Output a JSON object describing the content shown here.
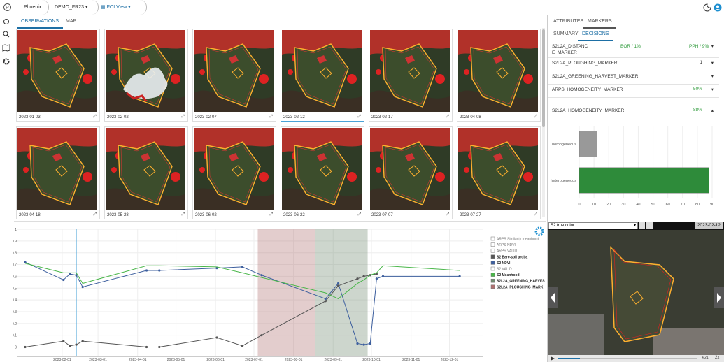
{
  "app": {
    "name": "Phoenix",
    "project": "DEMO_FR23",
    "view": "FOI View"
  },
  "tabs": {
    "main": [
      "OBSERVATIONS",
      "MAP"
    ],
    "side": [
      "ATTRIBUTES",
      "MARKERS"
    ],
    "markers": [
      "SUMMARY",
      "DECISIONS"
    ]
  },
  "observations": [
    "2023-01-03",
    "2023-02-02",
    "2023-02-07",
    "2023-02-12",
    "2023-02-17",
    "2023-04-08",
    "2023-04-18",
    "2023-05-28",
    "2023-06-02",
    "2023-06-22",
    "2023-07-07",
    "2023-07-27"
  ],
  "markers": [
    {
      "name": "S2L2A_DISTANCE_MARKER",
      "values": [
        "BOR / 1%",
        "PPH / 9%"
      ]
    },
    {
      "name": "S2L2A_PLOUGHING_MARKER",
      "value": 1
    },
    {
      "name": "S2L2A_GREENING_HARVEST_MARKER"
    },
    {
      "name": "ARPS_HOMOGENEITY_MARKER",
      "value": "50%"
    },
    {
      "name": "S2L2A_HOMOGENEITY_MARKER",
      "value": "88%"
    }
  ],
  "viewer": {
    "layer": "S2 true color",
    "frame": "4/21",
    "zoom": "2x"
  },
  "chart_data": [
    {
      "type": "line",
      "x": [
        "2023-01-03",
        "2023-02-02",
        "2023-02-07",
        "2023-02-12",
        "2023-02-17",
        "2023-04-08",
        "2023-04-18",
        "2023-06-02",
        "2023-06-22",
        "2023-07-07",
        "2023-08-26",
        "2023-09-05",
        "2023-09-20",
        "2023-09-25",
        "2023-09-30",
        "2023-10-05",
        "2023-10-10",
        "2023-12-09"
      ],
      "xlim": [
        "2022-12-28",
        "2023-12-27"
      ],
      "xticks": [
        "2023-02-01",
        "2023-03-01",
        "2023-04-01",
        "2023-05-01",
        "2023-06-01",
        "2023-07-01",
        "2023-08-01",
        "2023-09-01",
        "2023-10-01",
        "2023-11-01",
        "2023-12-01"
      ],
      "ylim": [
        -0.08,
        1
      ],
      "yticks": [
        0,
        0.1,
        0.2,
        0.3,
        0.4,
        0.5,
        0.6,
        0.7,
        0.8,
        0.9,
        1
      ],
      "grid": true,
      "series": [
        {
          "name": "ARPS Similarity meanhood",
          "checked": false
        },
        {
          "name": "ARPS NDVI",
          "checked": false
        },
        {
          "name": "ARPS VALID",
          "checked": false
        },
        {
          "name": "S2 Bare-soil proba",
          "checked": true,
          "color": "#555555",
          "values": [
            0.0,
            0.05,
            0.01,
            0.02,
            0.05,
            0.0,
            0.0,
            0.08,
            0.01,
            0.1,
            0.39,
            0.52,
            0.58,
            0.6,
            0.61,
            0.62,
            null,
            null
          ]
        },
        {
          "name": "S2 NDVI",
          "checked": true,
          "color": "#3d5f9e",
          "values": [
            0.72,
            0.57,
            0.62,
            0.61,
            0.51,
            0.65,
            0.65,
            0.67,
            0.68,
            0.61,
            0.41,
            0.54,
            0.03,
            0.02,
            0.03,
            0.58,
            0.6,
            0.6
          ]
        },
        {
          "name": "S2 VALID",
          "checked": false
        },
        {
          "name": "S2 Meanhood",
          "checked": true,
          "color": "#49b649",
          "values": [
            0.71,
            0.63,
            0.63,
            0.63,
            0.54,
            0.69,
            0.69,
            0.68,
            0.63,
            0.59,
            0.46,
            0.41,
            0.54,
            0.57,
            0.61,
            0.63,
            0.69,
            0.65
          ]
        },
        {
          "name": "S2L2A_GREENING_HARVES",
          "checked": true,
          "type": "span",
          "color": "#6f8a6f",
          "start": "2023-08-18",
          "end": "2023-09-28"
        },
        {
          "name": "S2L2A_PLOUGHING_MARK",
          "checked": true,
          "type": "span",
          "color": "#b07070",
          "start": "2023-07-04",
          "end": "2023-08-18"
        }
      ]
    },
    {
      "type": "barh",
      "categories": [
        "homogeneous",
        "heterogeneous"
      ],
      "values": [
        12,
        88
      ],
      "colors": [
        "#999999",
        "#2e8b3a"
      ],
      "xlim": [
        0,
        90
      ],
      "xticks": [
        0,
        10,
        20,
        30,
        40,
        50,
        60,
        70,
        80,
        90
      ],
      "grid": true
    }
  ]
}
